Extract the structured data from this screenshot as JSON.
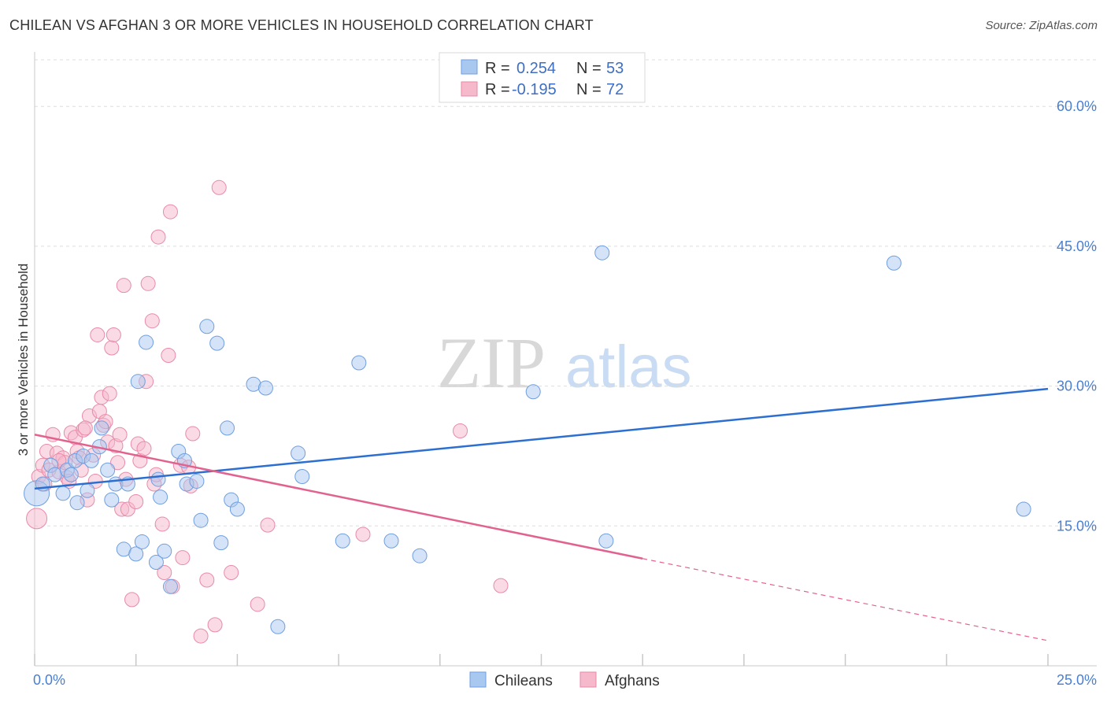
{
  "title": "CHILEAN VS AFGHAN 3 OR MORE VEHICLES IN HOUSEHOLD CORRELATION CHART",
  "source": "Source: ZipAtlas.com",
  "watermark": {
    "zip": "ZIP",
    "atlas": "atlas"
  },
  "legend": {
    "rows": [
      {
        "r_label": "R =",
        "r_value": "0.254",
        "n_label": "N =",
        "n_value": "53"
      },
      {
        "r_label": "R =",
        "r_value": "-0.195",
        "n_label": "N =",
        "n_value": "72"
      }
    ]
  },
  "bottom_legend": [
    "Chileans",
    "Afghans"
  ],
  "colors": {
    "chilean_fill": "#a9c8f0",
    "chilean_stroke": "#6f9fdf",
    "chilean_line": "#2c6fd1",
    "afghan_fill": "#f6b8cb",
    "afghan_stroke": "#e98aa8",
    "afghan_line": "#e2628f",
    "tick_text": "#4a7fd0",
    "grid": "#dddddd"
  },
  "chart_data": {
    "type": "scatter",
    "title": "CHILEAN VS AFGHAN 3 OR MORE VEHICLES IN HOUSEHOLD CORRELATION CHART",
    "xlabel": "",
    "ylabel": "3 or more Vehicles in Household",
    "xlim": [
      0,
      25
    ],
    "ylim": [
      0,
      65
    ],
    "x_tick_labels": [
      "0.0%",
      "25.0%"
    ],
    "y_ticks": [
      15,
      30,
      45,
      60
    ],
    "y_tick_labels": [
      "15.0%",
      "30.0%",
      "45.0%",
      "60.0%"
    ],
    "series": [
      {
        "name": "Chileans",
        "r": 0.254,
        "n": 53,
        "trend": {
          "x0": 0,
          "y0": 19.0,
          "x1": 25,
          "y1": 29.7
        },
        "points": [
          [
            0.05,
            18.5,
            16
          ],
          [
            0.2,
            19.5,
            9
          ],
          [
            0.4,
            21.5,
            9
          ],
          [
            0.5,
            20.5,
            9
          ],
          [
            0.7,
            18.5,
            9
          ],
          [
            0.8,
            21.0,
            9
          ],
          [
            0.9,
            20.5,
            9
          ],
          [
            1.0,
            22.0,
            9
          ],
          [
            1.05,
            17.5,
            9
          ],
          [
            1.2,
            22.5,
            9
          ],
          [
            1.3,
            18.8,
            9
          ],
          [
            1.4,
            22.0,
            9
          ],
          [
            1.6,
            23.5,
            9
          ],
          [
            1.65,
            25.5,
            9
          ],
          [
            1.8,
            21.0,
            9
          ],
          [
            1.9,
            17.8,
            9
          ],
          [
            2.0,
            19.5,
            9
          ],
          [
            2.2,
            12.5,
            9
          ],
          [
            2.3,
            19.5,
            9
          ],
          [
            2.5,
            12.0,
            9
          ],
          [
            2.55,
            30.5,
            9
          ],
          [
            2.65,
            13.3,
            9
          ],
          [
            2.75,
            34.7,
            9
          ],
          [
            3.0,
            11.1,
            9
          ],
          [
            3.05,
            20.0,
            9
          ],
          [
            3.1,
            18.1,
            9
          ],
          [
            3.2,
            12.3,
            9
          ],
          [
            3.35,
            8.5,
            9
          ],
          [
            3.55,
            23.0,
            9
          ],
          [
            3.7,
            22.0,
            9
          ],
          [
            3.75,
            19.5,
            9
          ],
          [
            4.0,
            19.8,
            9
          ],
          [
            4.1,
            15.6,
            9
          ],
          [
            4.25,
            36.4,
            9
          ],
          [
            4.5,
            34.6,
            9
          ],
          [
            4.6,
            13.2,
            9
          ],
          [
            4.75,
            25.5,
            9
          ],
          [
            4.85,
            17.8,
            9
          ],
          [
            5.0,
            16.8,
            9
          ],
          [
            5.4,
            30.2,
            9
          ],
          [
            5.7,
            29.8,
            9
          ],
          [
            6.0,
            4.2,
            9
          ],
          [
            6.5,
            22.8,
            9
          ],
          [
            6.6,
            20.3,
            9
          ],
          [
            7.6,
            13.4,
            9
          ],
          [
            8.0,
            32.5,
            9
          ],
          [
            8.8,
            13.4,
            9
          ],
          [
            9.5,
            11.8,
            9
          ],
          [
            12.3,
            29.4,
            9
          ],
          [
            14.0,
            44.3,
            9
          ],
          [
            14.1,
            13.4,
            9
          ],
          [
            21.2,
            43.2,
            9
          ],
          [
            24.4,
            16.8,
            9
          ]
        ]
      },
      {
        "name": "Afghans",
        "r": -0.195,
        "n": 72,
        "trend": {
          "x0": 0,
          "y0": 24.8,
          "x1": 15.0,
          "y1": 11.5
        },
        "trend_dashed": {
          "x0": 15.0,
          "y0": 11.5,
          "x1": 25,
          "y1": 2.7
        },
        "points": [
          [
            0.05,
            15.8,
            13
          ],
          [
            0.1,
            20.3,
            9
          ],
          [
            0.2,
            21.5,
            9
          ],
          [
            0.25,
            19.5,
            9
          ],
          [
            0.3,
            23.0,
            9
          ],
          [
            0.35,
            21.0,
            9
          ],
          [
            0.45,
            24.8,
            9
          ],
          [
            0.55,
            22.8,
            9
          ],
          [
            0.6,
            20.8,
            9
          ],
          [
            0.7,
            22.3,
            9
          ],
          [
            0.75,
            21.8,
            9
          ],
          [
            0.8,
            20.2,
            9
          ],
          [
            0.85,
            19.8,
            9
          ],
          [
            0.9,
            25.0,
            9
          ],
          [
            1.0,
            24.5,
            9
          ],
          [
            1.05,
            23.0,
            9
          ],
          [
            1.1,
            22.3,
            9
          ],
          [
            1.15,
            21.0,
            9
          ],
          [
            1.2,
            25.3,
            9
          ],
          [
            1.3,
            17.8,
            9
          ],
          [
            1.35,
            26.8,
            9
          ],
          [
            1.45,
            22.6,
            9
          ],
          [
            1.5,
            19.8,
            9
          ],
          [
            1.55,
            35.5,
            9
          ],
          [
            1.6,
            27.3,
            9
          ],
          [
            1.65,
            28.8,
            9
          ],
          [
            1.7,
            25.8,
            9
          ],
          [
            1.75,
            26.2,
            9
          ],
          [
            1.8,
            24.0,
            9
          ],
          [
            1.85,
            29.2,
            9
          ],
          [
            1.9,
            34.1,
            9
          ],
          [
            2.0,
            23.6,
            9
          ],
          [
            2.05,
            21.8,
            9
          ],
          [
            2.1,
            24.8,
            9
          ],
          [
            2.15,
            16.8,
            9
          ],
          [
            2.2,
            40.8,
            9
          ],
          [
            2.25,
            20.0,
            9
          ],
          [
            2.3,
            16.8,
            9
          ],
          [
            2.4,
            7.1,
            9
          ],
          [
            2.5,
            17.6,
            9
          ],
          [
            2.55,
            23.8,
            9
          ],
          [
            2.6,
            22.0,
            9
          ],
          [
            2.7,
            23.3,
            9
          ],
          [
            2.75,
            30.5,
            9
          ],
          [
            2.8,
            41.0,
            9
          ],
          [
            2.9,
            37.0,
            9
          ],
          [
            2.95,
            19.5,
            9
          ],
          [
            3.0,
            20.5,
            9
          ],
          [
            3.05,
            46.0,
            9
          ],
          [
            3.15,
            15.2,
            9
          ],
          [
            3.2,
            10.0,
            9
          ],
          [
            3.3,
            33.3,
            9
          ],
          [
            3.35,
            48.7,
            9
          ],
          [
            3.4,
            8.5,
            9
          ],
          [
            3.6,
            21.5,
            9
          ],
          [
            3.65,
            11.6,
            9
          ],
          [
            3.8,
            21.3,
            9
          ],
          [
            3.85,
            19.3,
            9
          ],
          [
            3.9,
            24.9,
            9
          ],
          [
            4.1,
            3.2,
            9
          ],
          [
            4.25,
            9.2,
            9
          ],
          [
            4.45,
            4.4,
            9
          ],
          [
            4.55,
            51.3,
            9
          ],
          [
            4.85,
            10.0,
            9
          ],
          [
            5.5,
            6.6,
            9
          ],
          [
            5.75,
            15.1,
            9
          ],
          [
            8.1,
            14.1,
            9
          ],
          [
            10.5,
            25.2,
            9
          ],
          [
            11.5,
            8.6,
            9
          ],
          [
            1.95,
            35.5,
            9
          ],
          [
            0.6,
            22.0,
            9
          ],
          [
            1.25,
            25.5,
            9
          ]
        ]
      }
    ]
  }
}
